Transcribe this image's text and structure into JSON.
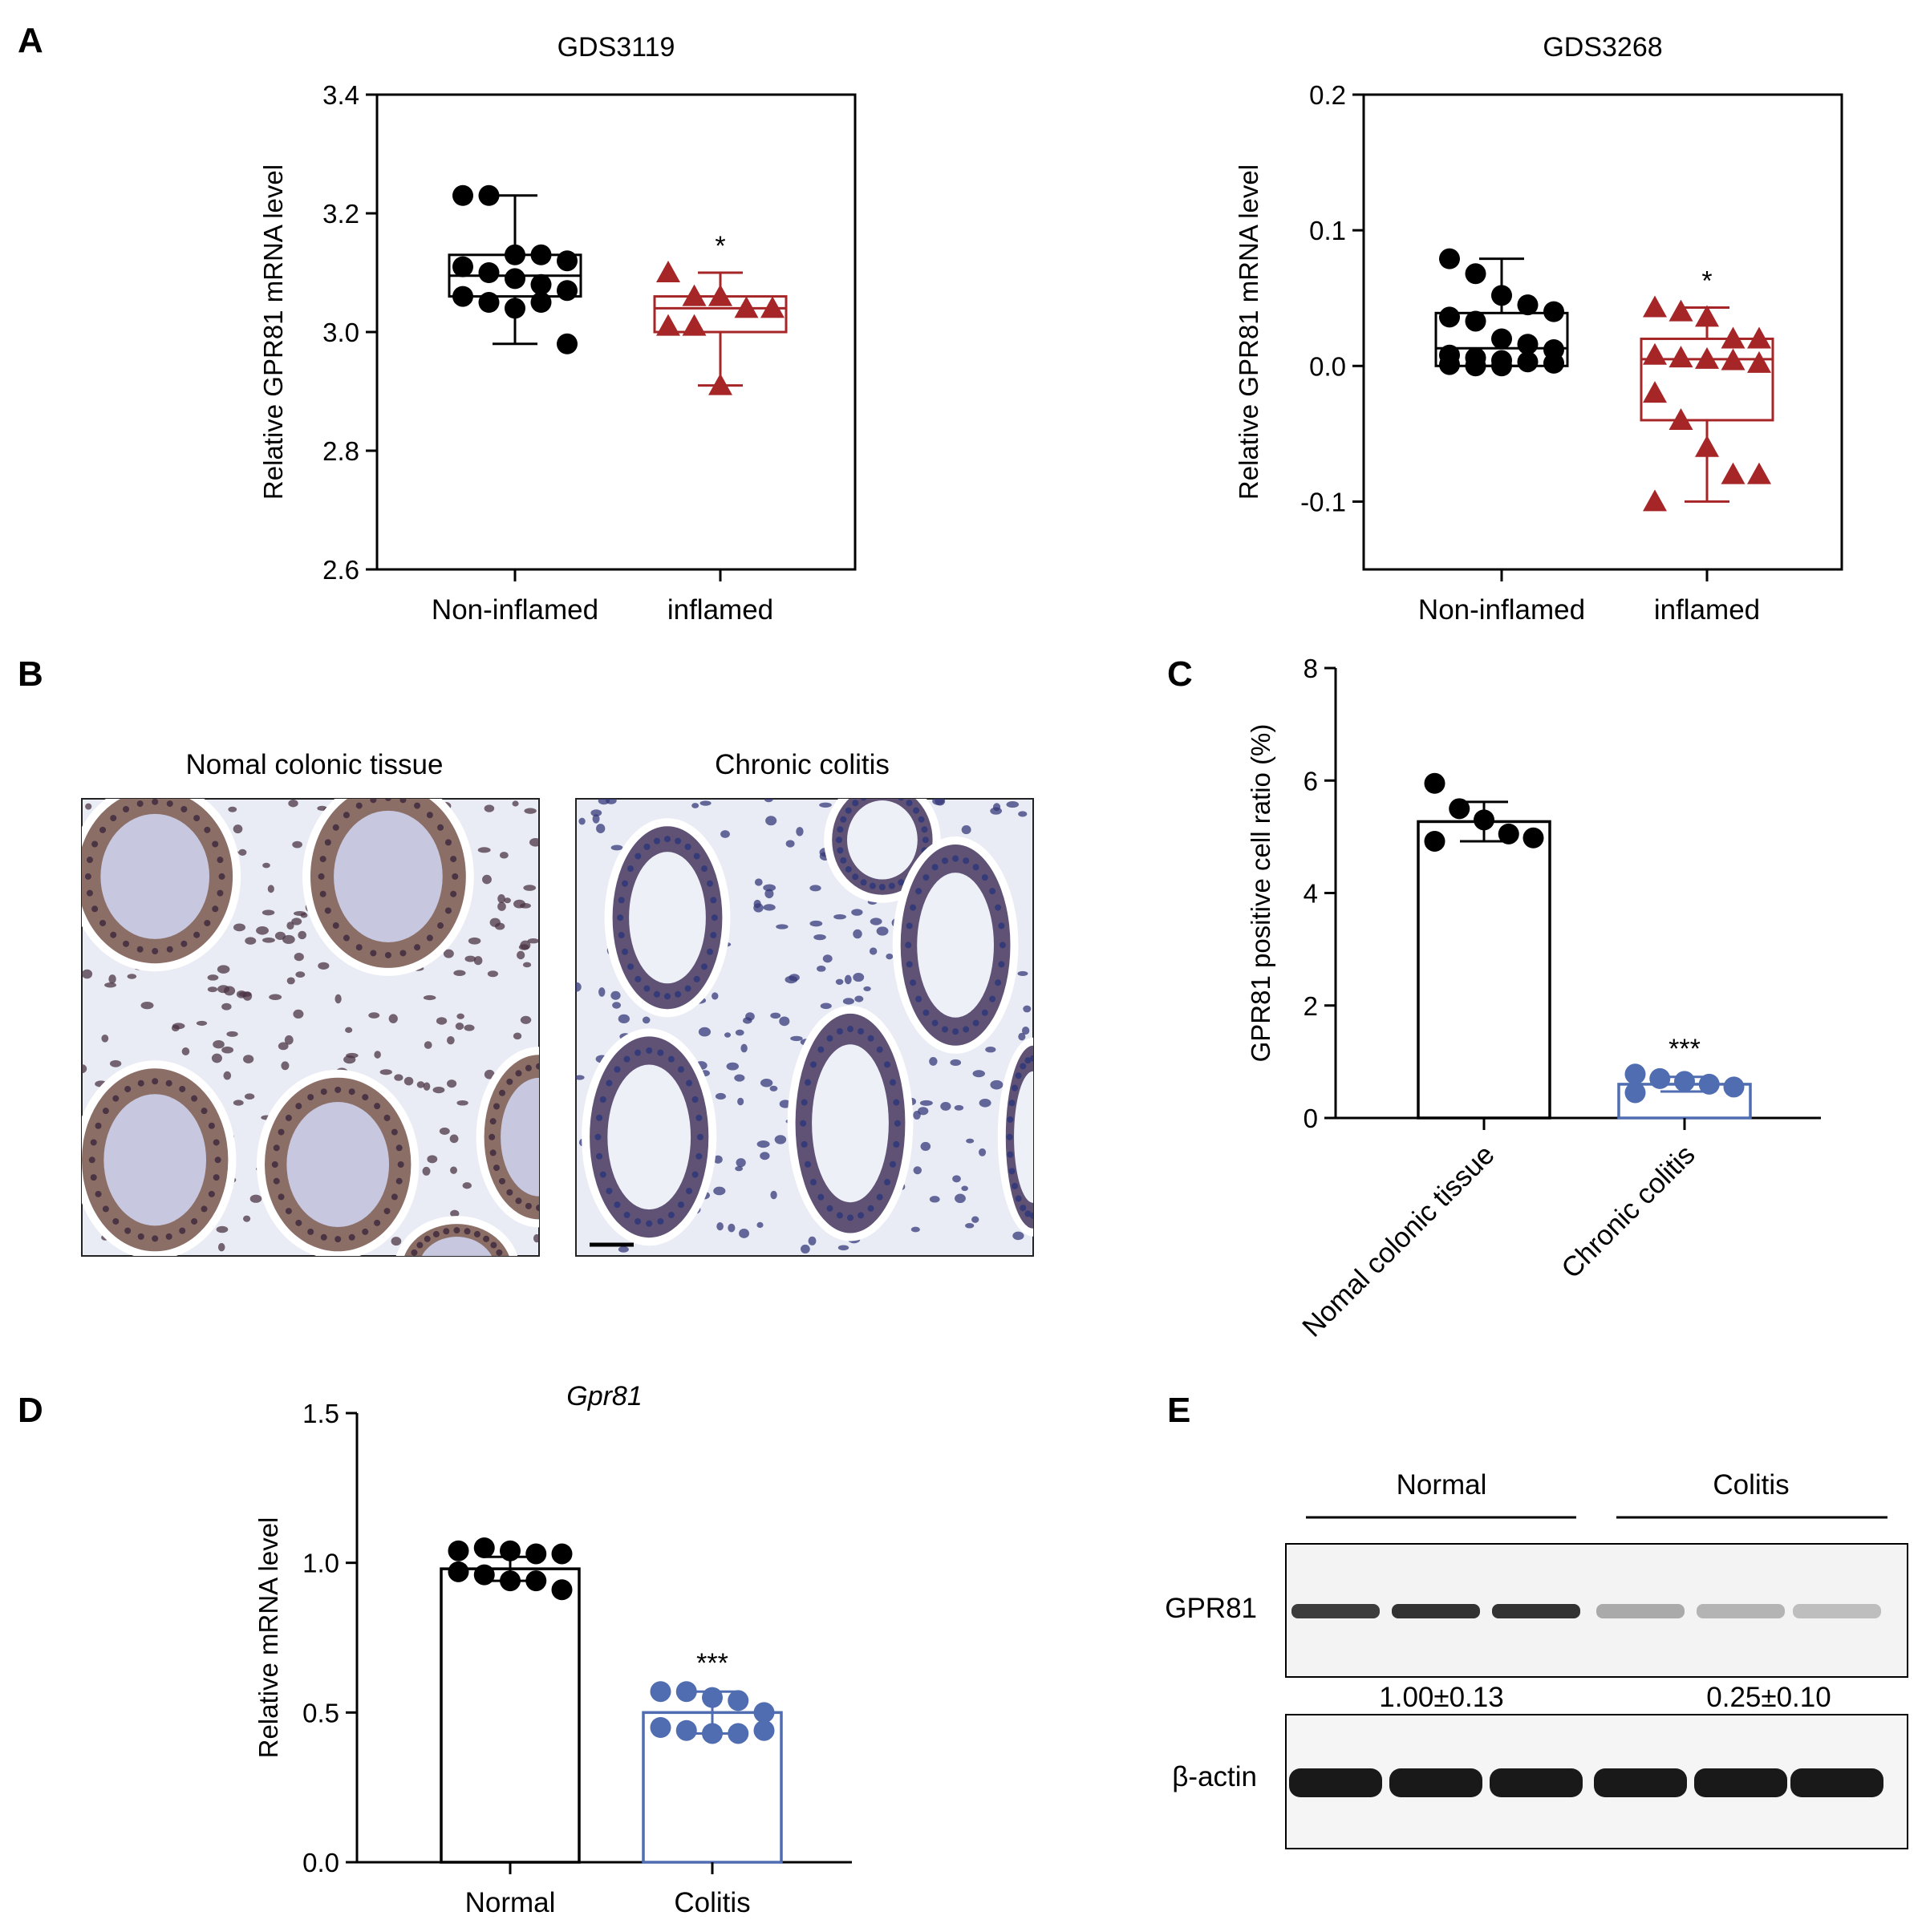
{
  "panels": {
    "A": "A",
    "B": "B",
    "C": "C",
    "D": "D",
    "E": "E"
  },
  "colors": {
    "black": "#000000",
    "red": "#A62628",
    "blue": "#4F6DB0"
  },
  "chart_data": [
    {
      "panel": "A-left",
      "type": "box",
      "title": "GDS3119",
      "ylabel": "Relative GPR81 mRNA level",
      "ylim": [
        2.6,
        3.4
      ],
      "yticks": [
        "2.6",
        "2.8",
        "3.0",
        "3.2",
        "3.4"
      ],
      "categories": [
        "Non-inflamed",
        "inflamed"
      ],
      "groups": [
        {
          "label": "Non-inflamed",
          "color": "#000000",
          "marker": "circle",
          "box": {
            "min": 2.98,
            "q1": 3.06,
            "median": 3.095,
            "q3": 3.13,
            "max": 3.23
          },
          "points": [
            3.23,
            3.23,
            3.13,
            3.13,
            3.12,
            3.11,
            3.1,
            3.09,
            3.08,
            3.07,
            3.06,
            3.05,
            3.04,
            3.05,
            2.98
          ]
        },
        {
          "label": "inflamed",
          "color": "#A62628",
          "marker": "triangle",
          "box": {
            "min": 2.91,
            "q1": 3.0,
            "median": 3.04,
            "q3": 3.06,
            "max": 3.1
          },
          "points": [
            3.1,
            3.06,
            3.06,
            3.04,
            3.04,
            3.01,
            3.01,
            2.91
          ]
        }
      ],
      "annotations": [
        {
          "group": "inflamed",
          "text": "*"
        }
      ]
    },
    {
      "panel": "A-right",
      "type": "box",
      "title": "GDS3268",
      "ylabel": "Relative GPR81 mRNA level",
      "ylim": [
        -0.15,
        0.2
      ],
      "yticks": [
        "-0.1",
        "0.0",
        "0.1",
        "0.2"
      ],
      "categories": [
        "Non-inflamed",
        "inflamed"
      ],
      "groups": [
        {
          "label": "Non-inflamed",
          "color": "#000000",
          "marker": "circle",
          "box": {
            "min": 0.0,
            "q1": 0.0,
            "median": 0.013,
            "q3": 0.039,
            "max": 0.079
          },
          "points": [
            0.079,
            0.068,
            0.052,
            0.045,
            0.04,
            0.036,
            0.033,
            0.02,
            0.016,
            0.012,
            0.008,
            0.006,
            0.004,
            0.003,
            0.002,
            0.001,
            0.0,
            0.0
          ]
        },
        {
          "label": "inflamed",
          "color": "#A62628",
          "marker": "triangle",
          "box": {
            "min": -0.1,
            "q1": -0.04,
            "median": 0.005,
            "q3": 0.02,
            "max": 0.043
          },
          "points": [
            0.043,
            0.04,
            0.036,
            0.02,
            0.02,
            0.008,
            0.006,
            0.005,
            0.004,
            0.002,
            -0.02,
            -0.04,
            -0.06,
            -0.08,
            -0.08,
            -0.1
          ]
        }
      ],
      "annotations": [
        {
          "group": "inflamed",
          "text": "*"
        }
      ]
    },
    {
      "panel": "C",
      "type": "bar",
      "ylabel": "GPR81 positive cell ratio (%)",
      "ylim": [
        0,
        8
      ],
      "yticks": [
        "0",
        "2",
        "4",
        "6",
        "8"
      ],
      "categories": [
        "Nomal colonic tissue",
        "Chronic colitis"
      ],
      "values": [
        5.27,
        0.6
      ],
      "sd": [
        0.35,
        0.13
      ],
      "colors": [
        "#000000",
        "#4F6DB0"
      ],
      "points": [
        [
          5.95,
          5.5,
          5.3,
          5.05,
          4.98,
          4.92
        ],
        [
          0.78,
          0.7,
          0.65,
          0.6,
          0.55,
          0.45
        ]
      ],
      "annotations": [
        {
          "group": "Chronic colitis",
          "text": "***"
        }
      ]
    },
    {
      "panel": "D",
      "type": "bar",
      "title": "Gpr81",
      "ylabel": "Relative mRNA level",
      "ylim": [
        0,
        1.5
      ],
      "yticks": [
        "0.0",
        "0.5",
        "1.0",
        "1.5"
      ],
      "categories": [
        "Normal",
        "Colitis"
      ],
      "values": [
        0.98,
        0.5
      ],
      "sd": [
        0.04,
        0.07
      ],
      "colors": [
        "#000000",
        "#4F6DB0"
      ],
      "points": [
        [
          1.04,
          1.05,
          1.04,
          1.03,
          1.03,
          0.97,
          0.96,
          0.94,
          0.94,
          0.91
        ],
        [
          0.57,
          0.57,
          0.55,
          0.54,
          0.5,
          0.45,
          0.44,
          0.43,
          0.43,
          0.44
        ]
      ],
      "annotations": [
        {
          "group": "Colitis",
          "text": "***"
        }
      ]
    }
  ],
  "panel_b": {
    "left_title": "Nomal colonic tissue",
    "right_title": "Chronic colitis"
  },
  "panel_e": {
    "group_labels": [
      "Normal",
      "Colitis"
    ],
    "row_labels": [
      "GPR81",
      "β-actin"
    ],
    "quant": [
      "1.00±0.13",
      "0.25±0.10"
    ],
    "gpr81_band_intensity": [
      0.9,
      0.95,
      0.95,
      0.35,
      0.3,
      0.25
    ],
    "actin_band_intensity": [
      1,
      1,
      1,
      1,
      1,
      1
    ]
  }
}
